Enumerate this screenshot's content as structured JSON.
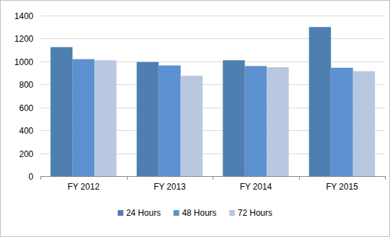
{
  "chart_data": {
    "type": "bar",
    "categories": [
      "FY 2012",
      "FY 2013",
      "FY 2014",
      "FY 2015"
    ],
    "series": [
      {
        "name": "24 Hours",
        "color": "#4f7fb1",
        "values": [
          1125,
          995,
          1010,
          1300
        ]
      },
      {
        "name": "48 Hours",
        "color": "#5c90d0",
        "values": [
          1020,
          965,
          960,
          945
        ]
      },
      {
        "name": "72 Hours",
        "color": "#b9c7e1",
        "values": [
          1010,
          875,
          950,
          915
        ]
      }
    ],
    "ylim": [
      0,
      1400
    ],
    "yticks": [
      0,
      200,
      400,
      600,
      800,
      1000,
      1200,
      1400
    ],
    "grid": true,
    "legend": "bottom"
  }
}
